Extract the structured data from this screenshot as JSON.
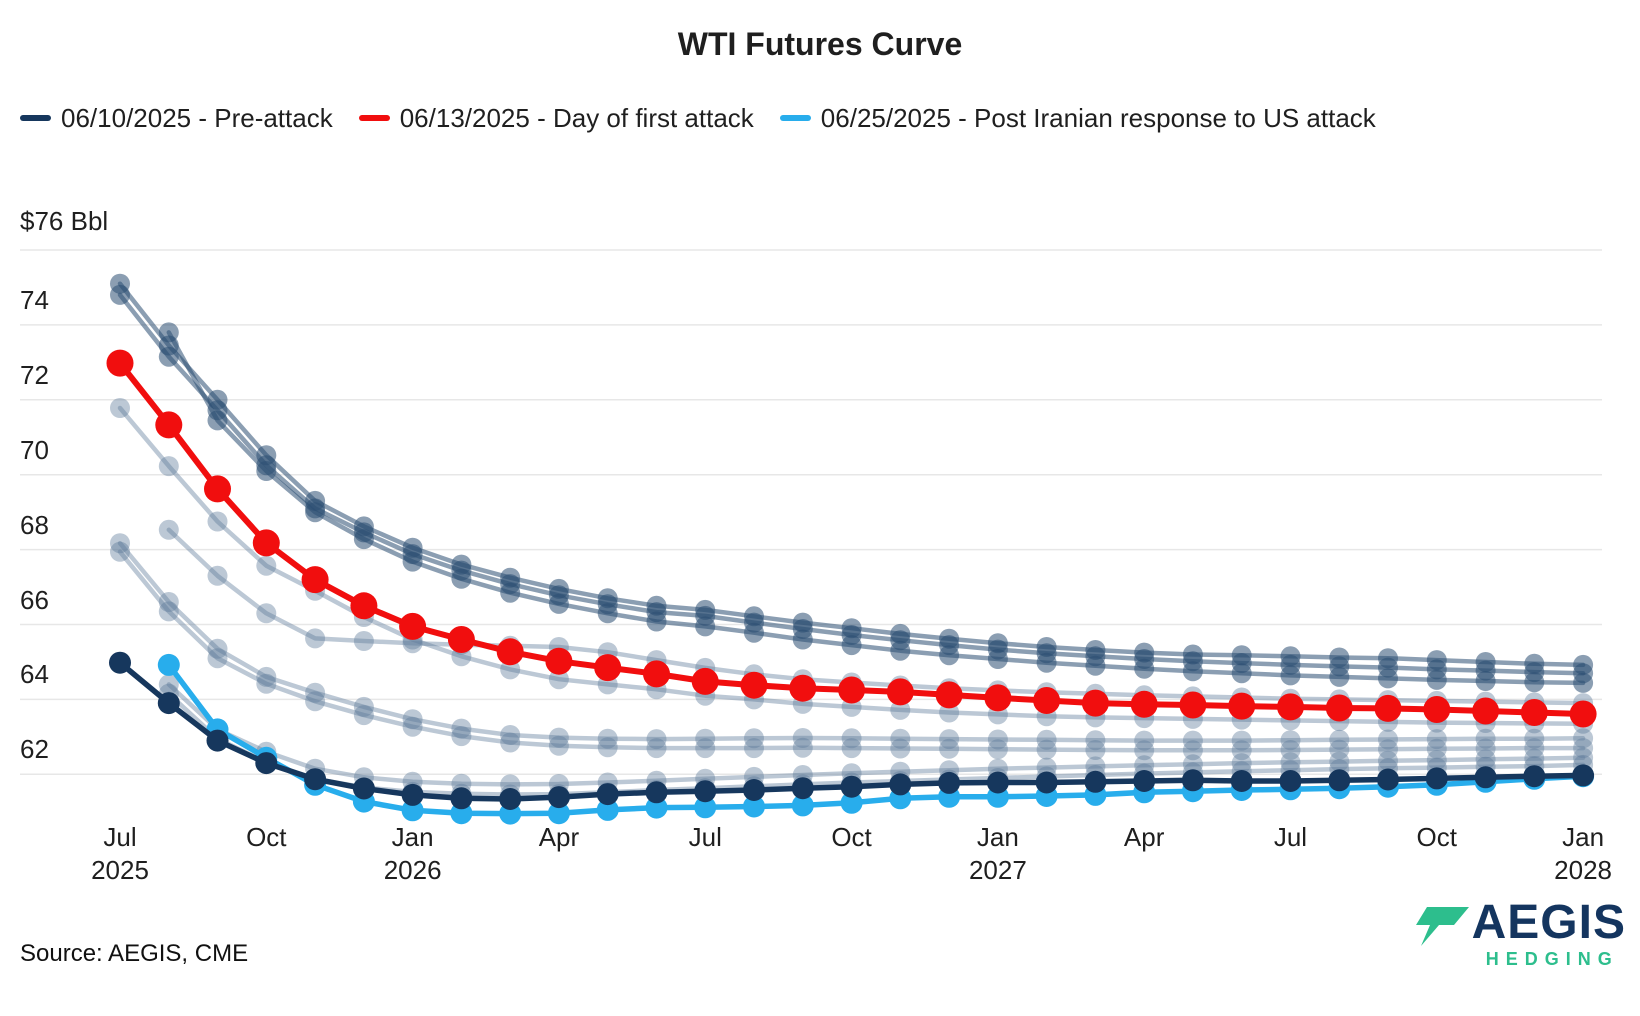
{
  "title": "WTI Futures Curve",
  "colors": {
    "navy": "#16375d",
    "red": "#f10e0e",
    "cyan": "#28adec",
    "faded_dark": "rgba(44,78,114,0.55)",
    "faded_light": "rgba(96,124,156,0.42)",
    "gridline": "#e7e7e7",
    "logo_navy": "#14355f",
    "logo_green": "#2dbe8d"
  },
  "legend": [
    {
      "label": "06/10/2025 - Pre-attack",
      "color": "#16375d"
    },
    {
      "label": "06/13/2025 - Day of first attack",
      "color": "#f10e0e"
    },
    {
      "label": "06/25/2025 - Post Iranian response to US attack",
      "color": "#28adec"
    }
  ],
  "y_axis": {
    "top_label": "$76 Bbl",
    "unit": "$/Bbl",
    "ticks": [
      76,
      74,
      72,
      70,
      68,
      66,
      64,
      62
    ]
  },
  "x_axis": {
    "ticks": [
      {
        "month_index": 0,
        "label": "Jul",
        "year": "2025"
      },
      {
        "month_index": 3,
        "label": "Oct",
        "year": ""
      },
      {
        "month_index": 6,
        "label": "Jan",
        "year": "2026"
      },
      {
        "month_index": 9,
        "label": "Apr",
        "year": ""
      },
      {
        "month_index": 12,
        "label": "Jul",
        "year": ""
      },
      {
        "month_index": 15,
        "label": "Oct",
        "year": ""
      },
      {
        "month_index": 18,
        "label": "Jan",
        "year": "2027"
      },
      {
        "month_index": 21,
        "label": "Apr",
        "year": ""
      },
      {
        "month_index": 24,
        "label": "Jul",
        "year": ""
      },
      {
        "month_index": 27,
        "label": "Oct",
        "year": ""
      },
      {
        "month_index": 30,
        "label": "Jan",
        "year": "2028"
      }
    ]
  },
  "source": "Source: AEGIS, CME",
  "logo": {
    "name": "AEGIS",
    "sub": "HEDGING"
  },
  "chart_data": {
    "type": "line",
    "title": "WTI Futures Curve",
    "x_unit": "contract month, Jul 2025 = 0, monthly points to Jan 2028",
    "ylabel": "$/Bbl",
    "ylim": [
      60.5,
      76
    ],
    "grid": "horizontal",
    "legend_position": "top-left",
    "series": [
      {
        "name": "unlabeled-history-1",
        "role": "faded",
        "shade": "dark",
        "start_month": 0,
        "values": [
          75.1,
          73.45,
          72.0,
          70.52,
          69.3,
          68.62,
          68.05,
          67.6,
          67.25,
          66.95,
          66.7,
          66.5,
          66.39,
          66.22,
          66.05,
          65.9,
          65.75,
          65.62,
          65.5,
          65.4,
          65.32,
          65.25,
          65.2,
          65.18,
          65.15,
          65.12,
          65.1,
          65.05,
          65.0,
          64.95,
          64.92
        ]
      },
      {
        "name": "unlabeled-history-2",
        "role": "faded",
        "shade": "dark",
        "start_month": 0,
        "values": [
          74.8,
          73.15,
          71.72,
          70.25,
          69.1,
          68.46,
          67.88,
          67.44,
          67.08,
          66.78,
          66.54,
          66.33,
          66.23,
          66.05,
          65.88,
          65.72,
          65.58,
          65.45,
          65.33,
          65.23,
          65.15,
          65.08,
          65.02,
          64.97,
          64.92,
          64.88,
          64.85,
          64.8,
          64.77,
          64.73,
          64.7
        ]
      },
      {
        "name": "unlabeled-history-3",
        "role": "faded",
        "shade": "dark",
        "start_month": 1,
        "values": [
          73.8,
          71.45,
          70.1,
          69.0,
          68.28,
          67.68,
          67.22,
          66.85,
          66.55,
          66.3,
          66.08,
          65.95,
          65.78,
          65.6,
          65.45,
          65.3,
          65.18,
          65.08,
          64.98,
          64.9,
          64.82,
          64.75,
          64.7,
          64.64,
          64.6,
          64.56,
          64.52,
          64.49,
          64.46,
          64.44
        ]
      },
      {
        "name": "unlabeled-history-4",
        "role": "faded",
        "shade": "light",
        "start_month": 0,
        "values": [
          71.78,
          70.23,
          68.75,
          67.57,
          66.9,
          66.2,
          65.6,
          65.15,
          64.8,
          64.54,
          64.4,
          64.27,
          64.1,
          64.0,
          63.88,
          63.8,
          63.72,
          63.65,
          63.6,
          63.55,
          63.52,
          63.5,
          63.48,
          63.46,
          63.44,
          63.42,
          63.4,
          63.38,
          63.37,
          63.36,
          63.35
        ]
      },
      {
        "name": "unlabeled-history-5",
        "role": "faded",
        "shade": "light",
        "start_month": 1,
        "values": [
          68.53,
          67.3,
          66.3,
          65.63,
          65.56,
          65.5,
          65.46,
          65.43,
          65.4,
          65.26,
          65.05,
          64.84,
          64.67,
          64.54,
          64.45,
          64.37,
          64.3,
          64.24,
          64.19,
          64.15,
          64.11,
          64.08,
          64.05,
          64.02,
          64.0,
          63.98,
          63.96,
          63.94,
          63.92,
          63.9
        ]
      },
      {
        "name": "unlabeled-history-6",
        "role": "faded",
        "shade": "light",
        "start_month": 0,
        "values": [
          68.17,
          66.6,
          65.35,
          64.6,
          64.18,
          63.8,
          63.47,
          63.22,
          63.05,
          62.98,
          62.95,
          62.94,
          62.95,
          62.96,
          62.97,
          62.96,
          62.95,
          62.94,
          62.93,
          62.92,
          62.91,
          62.9,
          62.9,
          62.9,
          62.91,
          62.92,
          62.93,
          62.94,
          62.95,
          62.95,
          62.96
        ]
      },
      {
        "name": "unlabeled-history-7",
        "role": "faded",
        "shade": "light",
        "start_month": 0,
        "values": [
          67.94,
          66.35,
          65.1,
          64.42,
          63.95,
          63.58,
          63.27,
          63.02,
          62.85,
          62.76,
          62.72,
          62.7,
          62.7,
          62.7,
          62.71,
          62.7,
          62.69,
          62.68,
          62.67,
          62.66,
          62.65,
          62.64,
          62.64,
          62.64,
          62.65,
          62.66,
          62.67,
          62.68,
          62.69,
          62.7,
          62.7
        ]
      },
      {
        "name": "unlabeled-history-8",
        "role": "faded",
        "shade": "light",
        "start_month": 1,
        "values": [
          64.4,
          63.2,
          62.6,
          62.15,
          61.92,
          61.8,
          61.75,
          61.73,
          61.74,
          61.78,
          61.83,
          61.88,
          61.93,
          61.98,
          62.03,
          62.07,
          62.11,
          62.15,
          62.18,
          62.21,
          62.24,
          62.27,
          62.3,
          62.32,
          62.34,
          62.36,
          62.38,
          62.4,
          62.42,
          62.44
        ]
      },
      {
        "name": "unlabeled-history-9",
        "role": "faded",
        "shade": "light",
        "start_month": 1,
        "values": [
          64.15,
          62.95,
          62.32,
          61.88,
          61.65,
          61.53,
          61.48,
          61.46,
          61.47,
          61.52,
          61.58,
          61.63,
          61.68,
          61.73,
          61.78,
          61.82,
          61.86,
          61.9,
          61.94,
          61.98,
          62.02,
          62.05,
          62.08,
          62.11,
          62.14,
          62.16,
          62.18,
          62.2,
          62.22,
          62.25
        ]
      },
      {
        "name": "06/13/2025 - Day of first attack",
        "role": "highlight",
        "color_key": "red",
        "start_month": 0,
        "values": [
          72.98,
          71.33,
          69.62,
          68.18,
          67.2,
          66.5,
          65.95,
          65.6,
          65.27,
          65.02,
          64.85,
          64.68,
          64.48,
          64.38,
          64.3,
          64.25,
          64.2,
          64.12,
          64.04,
          63.97,
          63.9,
          63.87,
          63.85,
          63.82,
          63.8,
          63.77,
          63.76,
          63.73,
          63.69,
          63.65,
          63.61
        ]
      },
      {
        "name": "06/25/2025 - Post Iranian response to US attack",
        "role": "highlight",
        "color_key": "cyan",
        "start_month": 1,
        "values": [
          64.92,
          63.2,
          62.44,
          61.72,
          61.27,
          61.04,
          60.96,
          60.95,
          60.96,
          61.05,
          61.11,
          61.12,
          61.14,
          61.17,
          61.24,
          61.36,
          61.4,
          61.4,
          61.42,
          61.45,
          61.52,
          61.55,
          61.58,
          61.6,
          61.63,
          61.67,
          61.72,
          61.8,
          61.88,
          61.95
        ]
      },
      {
        "name": "06/10/2025 - Pre-attack",
        "role": "highlight",
        "color_key": "navy",
        "start_month": 0,
        "values": [
          64.98,
          63.9,
          62.9,
          62.3,
          61.87,
          61.62,
          61.45,
          61.36,
          61.34,
          61.39,
          61.47,
          61.52,
          61.55,
          61.58,
          61.63,
          61.67,
          61.73,
          61.77,
          61.78,
          61.78,
          61.8,
          61.82,
          61.84,
          61.82,
          61.82,
          61.84,
          61.86,
          61.89,
          61.92,
          61.95,
          61.97
        ]
      }
    ]
  }
}
